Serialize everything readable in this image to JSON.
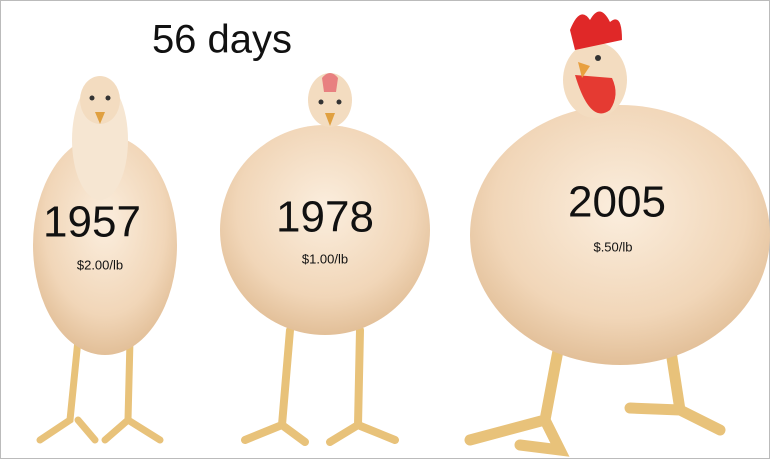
{
  "title": "56 days",
  "chickens": [
    {
      "year": "1957",
      "price": "$2.00/lb"
    },
    {
      "year": "1978",
      "price": "$1.00/lb"
    },
    {
      "year": "2005",
      "price": "$.50/lb"
    }
  ]
}
